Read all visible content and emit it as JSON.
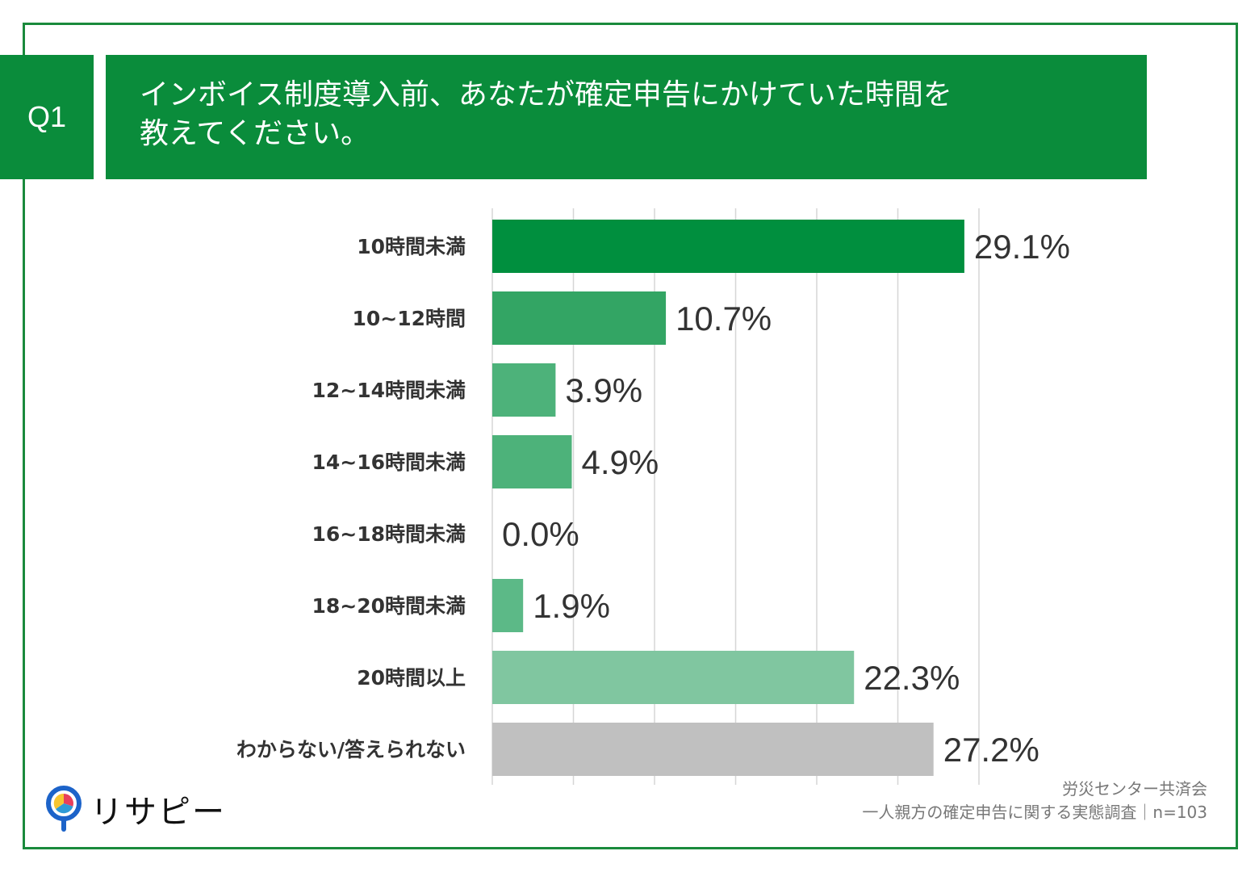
{
  "question": {
    "number": "Q1",
    "text": "インボイス制度導入前、あなたが確定申告にかけていた時間を\n教えてください。"
  },
  "chart_data": {
    "type": "bar",
    "orientation": "horizontal",
    "title": "",
    "xlabel": "",
    "ylabel": "",
    "xlim": [
      0,
      30
    ],
    "grid": true,
    "categories": [
      "10時間未満",
      "10~12時間",
      "12~14時間未満",
      "14~16時間未満",
      "16~18時間未満",
      "18~20時間未満",
      "20時間以上",
      "わからない/答えられない"
    ],
    "values": [
      29.1,
      10.7,
      3.9,
      4.9,
      0.0,
      1.9,
      22.3,
      27.2
    ],
    "value_labels": [
      "29.1%",
      "10.7%",
      "3.9%",
      "4.9%",
      "0.0%",
      "1.9%",
      "22.3%",
      "27.2%"
    ],
    "colors": [
      "#008f3e",
      "#33a564",
      "#4db27a",
      "#4db27a",
      "#4db27a",
      "#5cb987",
      "#80c6a0",
      "#c0c0c0"
    ]
  },
  "source": {
    "line1": "労災センター共済会",
    "line2": "一人親方の確定申告に関する実態調査｜n=103"
  },
  "logo": {
    "text": "リサピー",
    "icon": "magnifier-pie-icon"
  }
}
